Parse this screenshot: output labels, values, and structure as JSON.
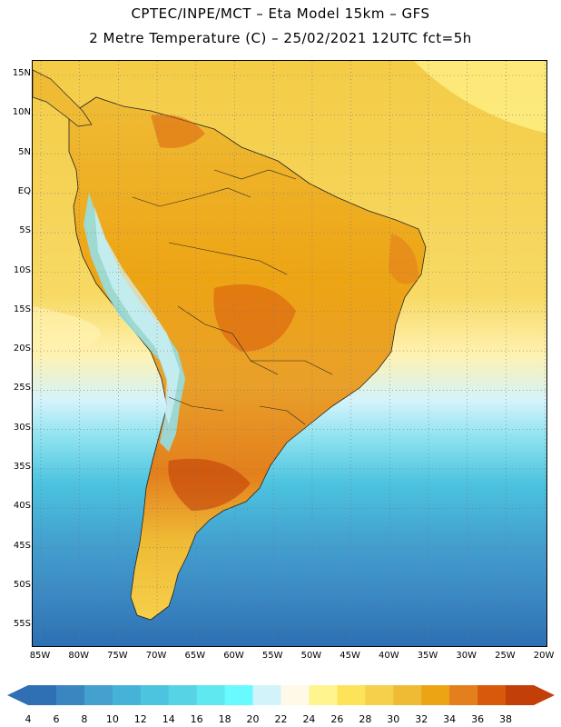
{
  "header": {
    "title_line1": "CPTEC/INPE/MCT –  Eta Model 15km – GFS",
    "title_line2": "2 Metre Temperature (C) – 25/02/2021 12UTC fct=5h"
  },
  "map": {
    "lat_labels": [
      "15N",
      "10N",
      "5N",
      "EQ",
      "5S",
      "10S",
      "15S",
      "20S",
      "25S",
      "30S",
      "35S",
      "40S",
      "45S",
      "50S",
      "55S"
    ],
    "lon_labels": [
      "85W",
      "80W",
      "75W",
      "70W",
      "65W",
      "60W",
      "55W",
      "50W",
      "45W",
      "40W",
      "35W",
      "30W",
      "25W",
      "20W"
    ],
    "grid": "dotted",
    "ocean_north_color": "#f4cc46",
    "ocean_south_color": "#2b6fb2"
  },
  "colorbar": {
    "ticks": [
      "4",
      "6",
      "8",
      "10",
      "12",
      "14",
      "16",
      "18",
      "20",
      "22",
      "24",
      "26",
      "28",
      "30",
      "32",
      "34",
      "36",
      "38"
    ],
    "colors": [
      "#2f6fb3",
      "#3a86c1",
      "#43a0cf",
      "#46b2d8",
      "#4cc3df",
      "#56d4e6",
      "#5fe8ef",
      "#69faff",
      "#d3f3fb",
      "#fff9e7",
      "#fff58f",
      "#fde35a",
      "#f6cf4b",
      "#efbb35",
      "#eda414",
      "#e37f1c",
      "#d9590c",
      "#c33f08"
    ],
    "left_arrow_color": "#2f6fb3",
    "right_arrow_color": "#c33f08"
  }
}
